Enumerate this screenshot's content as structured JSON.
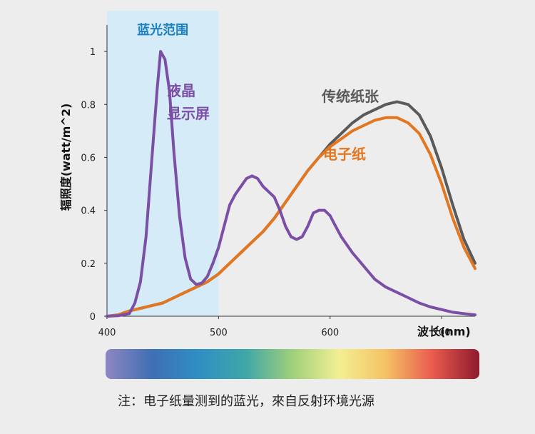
{
  "chart_data": {
    "type": "line",
    "xlabel": "波长(nm)",
    "ylabel": "辐照度(watt/m^2)",
    "xlim": [
      400,
      730
    ],
    "ylim": [
      0,
      1.1
    ],
    "x_ticks": [
      "400",
      "500",
      "600",
      "700"
    ],
    "y_ticks": [
      "0",
      "0.2",
      "0.4",
      "0.6",
      "0.8",
      "1"
    ],
    "grid": false,
    "highlight_band": {
      "label": "蓝光范围",
      "x_from": 400,
      "x_to": 500,
      "color": "#d5ecf8"
    },
    "series": [
      {
        "name": "液晶显示屏",
        "label_lines": [
          "液晶",
          "显示屏"
        ],
        "color": "#7b4fa6",
        "points": [
          [
            400,
            0
          ],
          [
            410,
            0.002
          ],
          [
            420,
            0.01
          ],
          [
            425,
            0.05
          ],
          [
            430,
            0.13
          ],
          [
            435,
            0.3
          ],
          [
            440,
            0.58
          ],
          [
            445,
            0.86
          ],
          [
            448,
            1.0
          ],
          [
            452,
            0.97
          ],
          [
            456,
            0.85
          ],
          [
            460,
            0.62
          ],
          [
            465,
            0.38
          ],
          [
            470,
            0.22
          ],
          [
            475,
            0.14
          ],
          [
            480,
            0.12
          ],
          [
            485,
            0.125
          ],
          [
            490,
            0.15
          ],
          [
            495,
            0.2
          ],
          [
            500,
            0.26
          ],
          [
            505,
            0.34
          ],
          [
            510,
            0.42
          ],
          [
            515,
            0.46
          ],
          [
            520,
            0.49
          ],
          [
            525,
            0.52
          ],
          [
            530,
            0.53
          ],
          [
            535,
            0.52
          ],
          [
            540,
            0.49
          ],
          [
            545,
            0.47
          ],
          [
            550,
            0.45
          ],
          [
            555,
            0.4
          ],
          [
            560,
            0.34
          ],
          [
            565,
            0.3
          ],
          [
            570,
            0.29
          ],
          [
            575,
            0.3
          ],
          [
            580,
            0.34
          ],
          [
            585,
            0.39
          ],
          [
            590,
            0.4
          ],
          [
            595,
            0.4
          ],
          [
            600,
            0.38
          ],
          [
            605,
            0.34
          ],
          [
            610,
            0.3
          ],
          [
            620,
            0.24
          ],
          [
            630,
            0.19
          ],
          [
            640,
            0.14
          ],
          [
            650,
            0.11
          ],
          [
            660,
            0.09
          ],
          [
            670,
            0.07
          ],
          [
            680,
            0.05
          ],
          [
            690,
            0.035
          ],
          [
            700,
            0.025
          ],
          [
            710,
            0.015
          ],
          [
            720,
            0.01
          ],
          [
            730,
            0.005
          ]
        ]
      },
      {
        "name": "传统纸张",
        "label_lines": [
          "传统纸张"
        ],
        "color": "#5a5a5a",
        "points": [
          [
            400,
            0
          ],
          [
            410,
            0.005
          ],
          [
            420,
            0.02
          ],
          [
            430,
            0.03
          ],
          [
            440,
            0.04
          ],
          [
            450,
            0.05
          ],
          [
            460,
            0.07
          ],
          [
            470,
            0.09
          ],
          [
            480,
            0.11
          ],
          [
            490,
            0.13
          ],
          [
            500,
            0.16
          ],
          [
            510,
            0.2
          ],
          [
            520,
            0.24
          ],
          [
            530,
            0.28
          ],
          [
            540,
            0.32
          ],
          [
            550,
            0.37
          ],
          [
            560,
            0.43
          ],
          [
            570,
            0.49
          ],
          [
            580,
            0.55
          ],
          [
            590,
            0.6
          ],
          [
            600,
            0.65
          ],
          [
            610,
            0.69
          ],
          [
            620,
            0.73
          ],
          [
            630,
            0.76
          ],
          [
            640,
            0.78
          ],
          [
            650,
            0.8
          ],
          [
            660,
            0.81
          ],
          [
            670,
            0.8
          ],
          [
            680,
            0.76
          ],
          [
            690,
            0.68
          ],
          [
            700,
            0.56
          ],
          [
            710,
            0.42
          ],
          [
            720,
            0.29
          ],
          [
            730,
            0.2
          ]
        ]
      },
      {
        "name": "电子纸",
        "label_lines": [
          "电子纸"
        ],
        "color": "#e3761e",
        "points": [
          [
            400,
            0
          ],
          [
            410,
            0.005
          ],
          [
            420,
            0.02
          ],
          [
            430,
            0.03
          ],
          [
            440,
            0.04
          ],
          [
            450,
            0.05
          ],
          [
            460,
            0.07
          ],
          [
            470,
            0.09
          ],
          [
            480,
            0.11
          ],
          [
            490,
            0.13
          ],
          [
            500,
            0.16
          ],
          [
            510,
            0.2
          ],
          [
            520,
            0.24
          ],
          [
            530,
            0.28
          ],
          [
            540,
            0.32
          ],
          [
            550,
            0.37
          ],
          [
            560,
            0.43
          ],
          [
            570,
            0.49
          ],
          [
            580,
            0.55
          ],
          [
            590,
            0.6
          ],
          [
            600,
            0.64
          ],
          [
            610,
            0.67
          ],
          [
            620,
            0.7
          ],
          [
            630,
            0.72
          ],
          [
            640,
            0.74
          ],
          [
            650,
            0.75
          ],
          [
            660,
            0.75
          ],
          [
            670,
            0.73
          ],
          [
            680,
            0.69
          ],
          [
            690,
            0.61
          ],
          [
            700,
            0.5
          ],
          [
            710,
            0.37
          ],
          [
            720,
            0.26
          ],
          [
            730,
            0.18
          ]
        ]
      }
    ]
  },
  "spectrum_bar": {
    "colors": [
      "#8f86c2",
      "#3f6fb3",
      "#2f8fc4",
      "#3fa7a8",
      "#9fd07a",
      "#f3ef93",
      "#f4c263",
      "#e95b4e",
      "#8d1a2c"
    ]
  },
  "footnote": "注：电子纸量测到的蓝光，來自反射环境光源"
}
